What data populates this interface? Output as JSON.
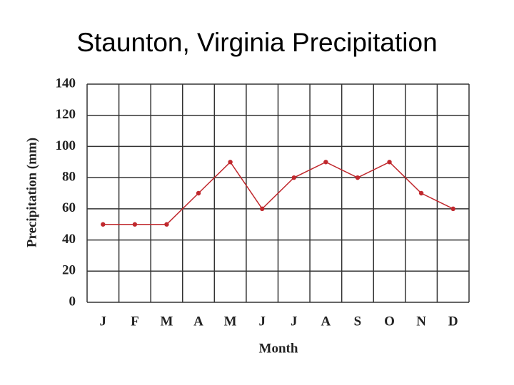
{
  "chart_data": {
    "type": "line",
    "title": "Staunton, Virginia Precipitation",
    "x_label": "Month",
    "y_label": "Precipitation (mm)",
    "categories": [
      "J",
      "F",
      "M",
      "A",
      "M",
      "J",
      "J",
      "A",
      "S",
      "O",
      "N",
      "D"
    ],
    "series": [
      {
        "values": [
          50,
          50,
          50,
          70,
          90,
          60,
          80,
          90,
          80,
          90,
          70,
          60
        ],
        "color": "#c0282d"
      }
    ],
    "ylim": [
      0,
      140
    ],
    "yticks": [
      0,
      20,
      40,
      60,
      80,
      100,
      120,
      140
    ],
    "grid": true
  }
}
